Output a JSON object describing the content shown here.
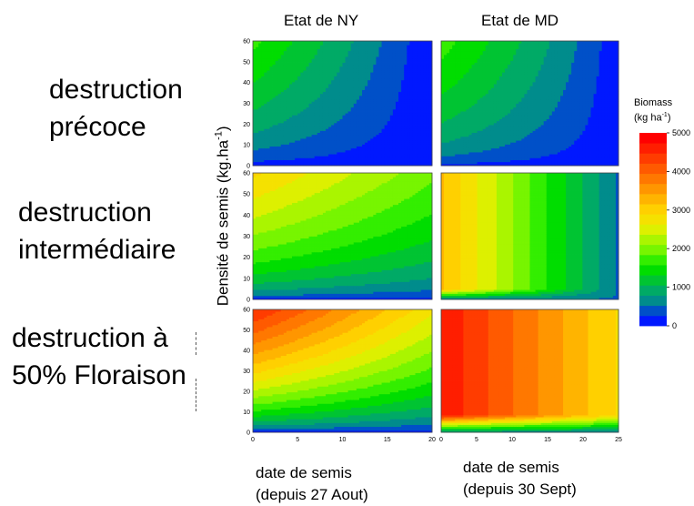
{
  "columns": [
    "Etat de NY",
    "Etat de MD"
  ],
  "rows": [
    [
      "destruction",
      "précoce"
    ],
    [
      "destruction",
      "intermédiaire"
    ],
    [
      "destruction à",
      "50% Floraison"
    ]
  ],
  "ylabel": "Densité de semis (kg.ha",
  "ylabel_sup": "-1",
  "ylabel_close": ")",
  "xlabels": [
    [
      "date de semis",
      "(depuis 27 Aout)"
    ],
    [
      "date de semis",
      "(depuis 30 Sept)"
    ]
  ],
  "legend": {
    "title_line1": "Biomass",
    "title_line2": "(kg ha",
    "title_sup": "-1",
    "title_close": ")",
    "ticks": [
      5000,
      4000,
      3000,
      2000,
      1000,
      0
    ],
    "colors": [
      "#0018ff",
      "#0050c8",
      "#008c8c",
      "#00aa66",
      "#00c432",
      "#00dd00",
      "#33ee00",
      "#77f500",
      "#aaf500",
      "#ddf000",
      "#f5e100",
      "#ffd000",
      "#ffb400",
      "#ff9600",
      "#ff7800",
      "#ff5a00",
      "#ff3c00",
      "#ff1e00",
      "#ff0000"
    ]
  },
  "chart_data": {
    "type": "heatmap",
    "x_ticks_NY": [
      0,
      5,
      10,
      15,
      20
    ],
    "x_ticks_MD": [
      0,
      5,
      10,
      15,
      20,
      25
    ],
    "y_ticks": [
      0,
      10,
      20,
      30,
      40,
      50,
      60
    ],
    "xlim_NY": [
      0,
      20
    ],
    "xlim_MD": [
      0,
      25
    ],
    "ylim": [
      0,
      60
    ],
    "zlim": [
      0,
      5000
    ],
    "panels": [
      {
        "row": "destruction précoce",
        "column": "Etat de NY",
        "biomass_min": 0,
        "biomass_max": 1800
      },
      {
        "row": "destruction précoce",
        "column": "Etat de MD",
        "biomass_min": 0,
        "biomass_max": 1800
      },
      {
        "row": "destruction intermédiaire",
        "column": "Etat de NY",
        "biomass_min": 0,
        "biomass_max": 3000
      },
      {
        "row": "destruction intermédiaire",
        "column": "Etat de MD",
        "biomass_min": 500,
        "biomass_max": 2800
      },
      {
        "row": "destruction à 50% Floraison",
        "column": "Etat de NY",
        "biomass_min": 0,
        "biomass_max": 4500
      },
      {
        "row": "destruction à 50% Floraison",
        "column": "Etat de MD",
        "biomass_min": 500,
        "biomass_max": 4700
      }
    ]
  }
}
